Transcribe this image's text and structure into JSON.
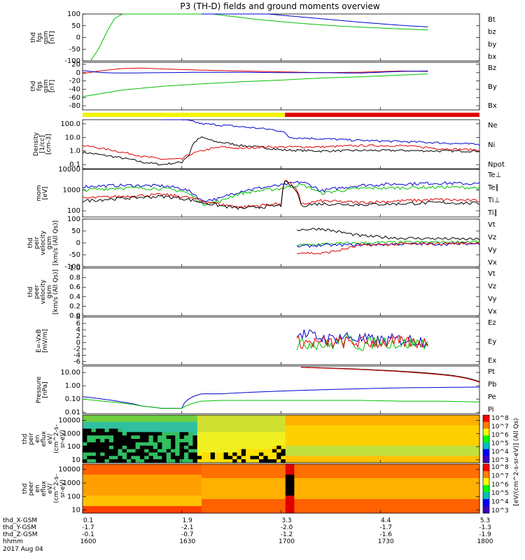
{
  "title": "P3 (TH-D) fields and ground moments overview",
  "date": "2017 Aug 04",
  "time_axis": {
    "row_labels": [
      "thd_X-GSM",
      "thd_Y-GSM",
      "thd_Z-GSM",
      "hhmm"
    ],
    "columns": [
      {
        "x": "0.1",
        "y": "-1.7",
        "z": "-0.1",
        "hhmm": "1600"
      },
      {
        "x": "1.9",
        "y": "-2.1",
        "z": "-0.7",
        "hhmm": "1630"
      },
      {
        "x": "3.3",
        "y": "-2.0",
        "z": "-1.2",
        "hhmm": "1700"
      },
      {
        "x": "4.4",
        "y": "-1.7",
        "z": "-1.6",
        "hhmm": "1730"
      },
      {
        "x": "5.3",
        "y": "-1.3",
        "z": "-1.9",
        "hhmm": "1800"
      }
    ]
  },
  "colors": {
    "black": "#000000",
    "red": "#e00000",
    "green": "#00c000",
    "blue": "#0000d0",
    "yellow": "#f4f400",
    "barred": "#e00000"
  },
  "chart_data": [
    {
      "id": "p1",
      "type": "line",
      "ylabel": [
        "thd",
        "fgs",
        "gsm",
        "[nT]"
      ],
      "yticks": [
        "100",
        "50",
        "0",
        "-50",
        "-100"
      ],
      "ylim": [
        -100,
        100
      ],
      "legend": [
        {
          "label": "Bt",
          "color": "#000000"
        },
        {
          "label": "bz",
          "color": "#e00000"
        },
        {
          "label": "by",
          "color": "#00c000"
        },
        {
          "label": "bx",
          "color": "#0000d0"
        }
      ],
      "series": [
        {
          "name": "by",
          "color": "#00c000",
          "x": [
            0.02,
            0.04,
            0.06,
            0.08,
            0.12,
            0.18,
            0.25,
            0.35,
            0.45,
            0.55,
            0.65,
            0.78,
            0.87
          ],
          "y": [
            -100,
            -50,
            20,
            80,
            120,
            130,
            120,
            95,
            75,
            60,
            48,
            38,
            32
          ]
        },
        {
          "name": "bx",
          "color": "#0000d0",
          "x": [
            0.3,
            0.4,
            0.5,
            0.6,
            0.7,
            0.8,
            0.87
          ],
          "y": [
            120,
            110,
            95,
            80,
            65,
            52,
            45
          ]
        }
      ]
    },
    {
      "id": "p2",
      "type": "line",
      "ylabel": [
        "thd",
        "fgs",
        "gsm",
        "[nT]"
      ],
      "yticks": [
        "20",
        "0",
        "-20",
        "-40",
        "-60",
        "-80"
      ],
      "ylim": [
        -90,
        25
      ],
      "legend": [
        {
          "label": "Bz",
          "color": "#e00000"
        },
        {
          "label": "By",
          "color": "#00c000"
        },
        {
          "label": "Bx",
          "color": "#0000d0"
        }
      ],
      "series": [
        {
          "name": "By",
          "color": "#00c000",
          "x": [
            0.0,
            0.05,
            0.1,
            0.2,
            0.3,
            0.4,
            0.5,
            0.6,
            0.7,
            0.8,
            0.87
          ],
          "y": [
            -58,
            -50,
            -42,
            -33,
            -27,
            -22,
            -18,
            -13,
            -10,
            -6,
            -3
          ]
        },
        {
          "name": "Bz",
          "color": "#e00000",
          "x": [
            0.0,
            0.05,
            0.1,
            0.15,
            0.2,
            0.3,
            0.4,
            0.5,
            0.6,
            0.7,
            0.8,
            0.87
          ],
          "y": [
            -2,
            5,
            10,
            11,
            9,
            6,
            4,
            2,
            0,
            1,
            4,
            3
          ]
        },
        {
          "name": "Bx",
          "color": "#0000d0",
          "x": [
            0.0,
            0.05,
            0.1,
            0.2,
            0.3,
            0.4,
            0.5,
            0.6,
            0.7,
            0.8,
            0.87
          ],
          "y": [
            5,
            0,
            -1,
            0,
            1,
            1,
            0,
            0,
            -1,
            3,
            4
          ]
        }
      ]
    },
    {
      "id": "p3",
      "type": "line",
      "yscale": "log",
      "ylabel": [
        "Density",
        "[1/cc]",
        "[cm-3]"
      ],
      "yticks": [
        "100.0",
        "10.0",
        "1.0",
        "0.1"
      ],
      "ylim": [
        0.05,
        200
      ],
      "legend": [
        {
          "label": "Ne",
          "color": "#e00000"
        },
        {
          "label": "Ni",
          "color": "#000000"
        },
        {
          "label": "Npot",
          "color": "#0000d0"
        }
      ],
      "series": [
        {
          "name": "Ni",
          "color": "#000000",
          "x": [
            0.0,
            0.05,
            0.1,
            0.15,
            0.2,
            0.25,
            0.27,
            0.3,
            0.33,
            0.4,
            0.5,
            0.6,
            0.7,
            0.8,
            0.9,
            1.0
          ],
          "y": [
            0.8,
            0.5,
            0.3,
            0.15,
            0.1,
            0.15,
            0.5,
            10,
            5,
            2.5,
            1.2,
            1.0,
            1.1,
            1.1,
            1.0,
            1.0
          ]
        },
        {
          "name": "Ne",
          "color": "#e00000",
          "x": [
            0.0,
            0.05,
            0.1,
            0.15,
            0.2,
            0.25,
            0.3,
            0.35,
            0.4,
            0.45,
            0.5,
            0.6,
            0.7,
            0.8,
            0.9,
            1.0
          ],
          "y": [
            2.5,
            1.5,
            0.8,
            0.4,
            0.25,
            0.25,
            1.0,
            2.0,
            1.5,
            2.0,
            2.0,
            2.0,
            2.5,
            2.5,
            1.5,
            1.2
          ]
        },
        {
          "name": "Npot",
          "color": "#0000d0",
          "x": [
            0.2,
            0.25,
            0.3,
            0.4,
            0.5,
            0.52,
            0.6,
            0.7,
            0.8,
            0.9,
            1.0
          ],
          "y": [
            300,
            200,
            100,
            60,
            30,
            10,
            8,
            6,
            5,
            4,
            3
          ]
        }
      ]
    },
    {
      "id": "p4",
      "type": "line",
      "yscale": "log",
      "ylabel": [
        "mom",
        "[eV]"
      ],
      "yticks": [
        "10000",
        "1000",
        "100"
      ],
      "ylim": [
        50,
        10000
      ],
      "legend": [
        {
          "label": "Te⊥",
          "color": "#e00000"
        },
        {
          "label": "Te∥",
          "color": "#000000"
        },
        {
          "label": "Ti⊥",
          "color": "#0000d0"
        },
        {
          "label": "Ti∥",
          "color": "#00c000"
        }
      ],
      "series": [
        {
          "name": "Ti⊥",
          "color": "#0000d0",
          "x": [
            0.0,
            0.1,
            0.2,
            0.25,
            0.3,
            0.35,
            0.4,
            0.5,
            0.55,
            0.6,
            0.7,
            0.8,
            0.9,
            1.0
          ],
          "y": [
            1500,
            1700,
            1600,
            1200,
            300,
            400,
            900,
            1700,
            2500,
            900,
            1700,
            2000,
            2200,
            2000
          ]
        },
        {
          "name": "Ti∥",
          "color": "#00c000",
          "x": [
            0.0,
            0.1,
            0.2,
            0.25,
            0.3,
            0.35,
            0.4,
            0.5,
            0.55,
            0.6,
            0.7,
            0.8,
            0.9,
            1.0
          ],
          "y": [
            1000,
            1300,
            1200,
            900,
            200,
            300,
            700,
            1200,
            1800,
            700,
            1200,
            1300,
            1400,
            1300
          ]
        },
        {
          "name": "Te⊥",
          "color": "#e00000",
          "x": [
            0.0,
            0.1,
            0.2,
            0.25,
            0.3,
            0.35,
            0.4,
            0.5,
            0.51,
            0.55,
            0.6,
            0.7,
            0.8,
            0.9,
            1.0
          ],
          "y": [
            400,
            500,
            600,
            500,
            300,
            200,
            150,
            220,
            3000,
            200,
            300,
            250,
            300,
            350,
            300
          ]
        },
        {
          "name": "Te∥",
          "color": "#000000",
          "x": [
            0.0,
            0.1,
            0.2,
            0.25,
            0.3,
            0.35,
            0.4,
            0.5,
            0.51,
            0.55,
            0.6,
            0.7,
            0.8,
            0.9,
            1.0
          ],
          "y": [
            300,
            400,
            500,
            400,
            250,
            170,
            130,
            180,
            2500,
            180,
            220,
            200,
            220,
            250,
            230
          ]
        }
      ]
    },
    {
      "id": "p5",
      "type": "line",
      "ylabel": [
        "thd",
        "peir",
        "velocity",
        "gsm",
        "[km/s (All Qs)]"
      ],
      "yticks": [
        "100",
        "50",
        "0",
        "-50",
        "-100"
      ],
      "ylim": [
        -100,
        100
      ],
      "legend": [
        {
          "label": "Vt",
          "color": "#000000"
        },
        {
          "label": "Vz",
          "color": "#e00000"
        },
        {
          "label": "Vy",
          "color": "#00c000"
        },
        {
          "label": "Vx",
          "color": "#0000d0"
        }
      ],
      "series": [
        {
          "name": "Vt",
          "color": "#000000",
          "x": [
            0.54,
            0.6,
            0.65,
            0.7,
            0.8,
            0.9,
            1.0
          ],
          "y": [
            55,
            60,
            45,
            30,
            20,
            18,
            15
          ]
        },
        {
          "name": "Vy",
          "color": "#00c000",
          "x": [
            0.54,
            0.6,
            0.7,
            0.8,
            0.9,
            1.0
          ],
          "y": [
            -10,
            -5,
            0,
            2,
            3,
            5
          ]
        },
        {
          "name": "Vx",
          "color": "#0000d0",
          "x": [
            0.54,
            0.6,
            0.7,
            0.8,
            0.9,
            1.0
          ],
          "y": [
            -15,
            -10,
            -8,
            -5,
            -5,
            -3
          ]
        },
        {
          "name": "Vz",
          "color": "#e00000",
          "x": [
            0.54,
            0.6,
            0.65,
            0.7,
            0.8,
            0.9,
            1.0
          ],
          "y": [
            -40,
            -45,
            -30,
            -10,
            -5,
            -3,
            0
          ]
        }
      ]
    },
    {
      "id": "p6",
      "type": "line",
      "ylabel": [
        "thd",
        "peer",
        "velocity",
        "gsm",
        "[km/s (All Qs)]"
      ],
      "yticks": [
        "1.0",
        "0.8",
        "0.6",
        "0.4",
        "0.2",
        "0.0"
      ],
      "ylim": [
        0,
        1
      ],
      "legend": [
        {
          "label": "Vt",
          "color": "#000000"
        },
        {
          "label": "Vz",
          "color": "#e00000"
        },
        {
          "label": "Vy",
          "color": "#00c000"
        },
        {
          "label": "Vx",
          "color": "#0000d0"
        }
      ],
      "series": []
    },
    {
      "id": "p7",
      "type": "line",
      "ylabel": [
        "E=-VxB",
        "[mV/m]"
      ],
      "yticks": [
        "8",
        "6",
        "4",
        "2",
        "0",
        "-2",
        "-4",
        "-6"
      ],
      "ylim": [
        -7,
        8
      ],
      "legend": [
        {
          "label": "Ez",
          "color": "#e00000"
        },
        {
          "label": "Ey",
          "color": "#00c000"
        },
        {
          "label": "Ex",
          "color": "#0000d0"
        }
      ],
      "series": [
        {
          "name": "Ex",
          "color": "#0000d0",
          "x": [
            0.54,
            0.58,
            0.62,
            0.66,
            0.7,
            0.75,
            0.8,
            0.87
          ],
          "y": [
            3,
            2,
            1,
            2,
            1,
            0.5,
            1,
            0.5
          ]
        },
        {
          "name": "Ey",
          "color": "#00c000",
          "x": [
            0.54,
            0.58,
            0.62,
            0.66,
            0.7,
            0.75,
            0.8,
            0.87
          ],
          "y": [
            -1,
            0,
            -1,
            1,
            -1,
            0.5,
            -0.5,
            0
          ]
        },
        {
          "name": "Ez",
          "color": "#e00000",
          "x": [
            0.54,
            0.6,
            0.7,
            0.8,
            0.87
          ],
          "y": [
            0,
            0,
            0,
            0,
            0
          ]
        }
      ]
    },
    {
      "id": "p8",
      "type": "line",
      "yscale": "log",
      "ylabel": [
        "Pressure",
        "[nPa]"
      ],
      "yticks": [
        "10.00",
        "1.00",
        "0.10",
        "0.01"
      ],
      "ylim": [
        0.008,
        30
      ],
      "legend": [
        {
          "label": "Pt",
          "color": "#000000"
        },
        {
          "label": "Pb",
          "color": "#e00000"
        },
        {
          "label": "Pe",
          "color": "#00c000"
        },
        {
          "label": "Pi",
          "color": "#0000d0"
        }
      ],
      "series": [
        {
          "name": "Pt",
          "color": "#000000",
          "x": [
            0.55,
            0.65,
            0.75,
            0.85,
            0.93,
            1.0
          ],
          "y": [
            25,
            20,
            15,
            10,
            6,
            2
          ]
        },
        {
          "name": "Pb",
          "color": "#e00000",
          "x": [
            0.55,
            0.65,
            0.75,
            0.85,
            0.93,
            1.0
          ],
          "y": [
            24,
            19,
            14,
            9,
            5.5,
            1.8
          ]
        },
        {
          "name": "Pi",
          "color": "#0000d0",
          "x": [
            0.0,
            0.05,
            0.1,
            0.15,
            0.2,
            0.25,
            0.3,
            0.35,
            0.4,
            0.5,
            0.6,
            0.7,
            0.8,
            0.9,
            1.0
          ],
          "y": [
            0.15,
            0.1,
            0.06,
            0.03,
            0.02,
            0.02,
            0.25,
            0.25,
            0.3,
            0.4,
            0.5,
            0.6,
            0.7,
            0.75,
            0.8
          ]
        },
        {
          "name": "Pe",
          "color": "#00c000",
          "x": [
            0.0,
            0.05,
            0.1,
            0.15,
            0.2,
            0.25,
            0.3,
            0.35,
            0.4,
            0.5,
            0.6,
            0.7,
            0.8,
            0.9,
            1.0
          ],
          "y": [
            0.1,
            0.07,
            0.05,
            0.03,
            0.02,
            0.02,
            0.07,
            0.08,
            0.08,
            0.08,
            0.08,
            0.08,
            0.07,
            0.07,
            0.06
          ]
        }
      ]
    },
    {
      "id": "p9",
      "type": "heatmap",
      "yscale": "log",
      "ylabel": [
        "thd",
        "peir",
        "en",
        "eflux",
        "eV/",
        "(cm^2-s-",
        "sr-eV)"
      ],
      "yticks": [
        "10000",
        "1000",
        "100",
        "10"
      ],
      "ylim": [
        6,
        25000
      ],
      "colorbar_ticks": [
        "10^8",
        "10^7",
        "10^6",
        "10^5",
        "10^4",
        "10^3"
      ]
    },
    {
      "id": "p10",
      "type": "heatmap",
      "yscale": "log",
      "ylabel": [
        "thd",
        "peer",
        "en",
        "eflux",
        "eV/",
        "(cm^2-s-",
        "sr-eV)"
      ],
      "yticks": [
        "10000",
        "1000",
        "100",
        "10"
      ],
      "ylim": [
        6,
        25000
      ],
      "colorbar_ticks": [
        "10^8",
        "10^7",
        "10^6",
        "10^5",
        "10^4",
        "10^3"
      ]
    }
  ],
  "colorbar_unit": "[eV/(cm^2-s-sr-eV)] (All Qs)"
}
